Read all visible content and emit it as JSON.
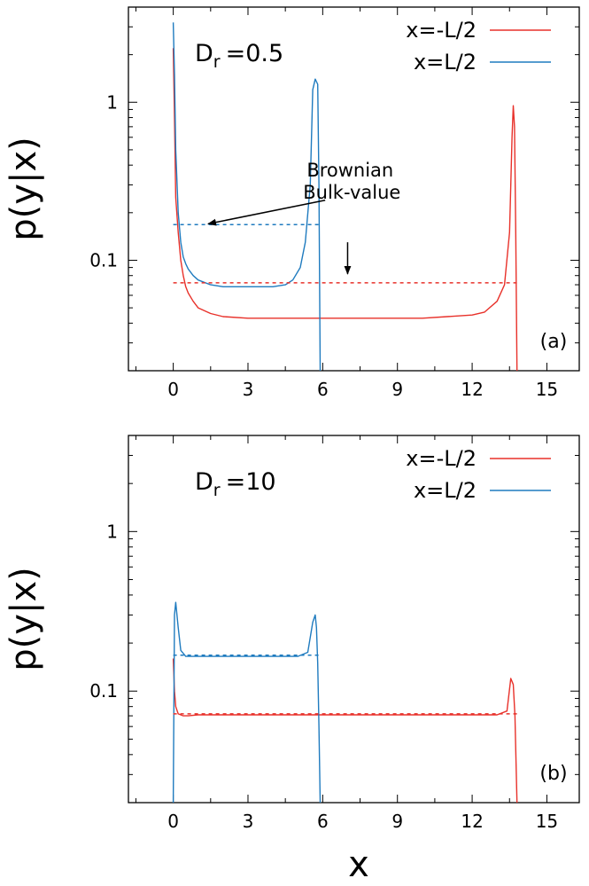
{
  "xlabel": "x",
  "chart_data": [
    {
      "type": "line",
      "panel_tag": "(a)",
      "ylabel": "p(y|x)",
      "param_main": "D",
      "param_sub": "r",
      "param_value": "=0.5",
      "xlim": [
        -1.8,
        16.3
      ],
      "ylim": [
        0.02,
        4.0
      ],
      "yscale": "log",
      "x_ticks": [
        0,
        3,
        6,
        9,
        12,
        15
      ],
      "x_tick_labels": [
        "0",
        "3",
        "6",
        "9",
        "12",
        "15"
      ],
      "y_ticks": [
        0.1,
        1
      ],
      "y_tick_labels": [
        "0.1",
        "1"
      ],
      "legend_position": "top-right",
      "colors": {
        "red": "#e8312a",
        "blue": "#1f7bbf"
      },
      "series": [
        {
          "name": "x=-L/2",
          "color": "#e8312a",
          "x": [
            0,
            0.05,
            0.1,
            0.2,
            0.3,
            0.4,
            0.5,
            0.6,
            0.8,
            1.0,
            1.5,
            2,
            3,
            4,
            5,
            6,
            7,
            8,
            9,
            10,
            11,
            12,
            12.5,
            13.0,
            13.3,
            13.5,
            13.6,
            13.65,
            13.7,
            13.75,
            13.8
          ],
          "y": [
            2.2,
            0.8,
            0.25,
            0.15,
            0.1,
            0.08,
            0.068,
            0.062,
            0.055,
            0.05,
            0.046,
            0.044,
            0.043,
            0.043,
            0.043,
            0.043,
            0.043,
            0.043,
            0.043,
            0.043,
            0.044,
            0.045,
            0.047,
            0.055,
            0.07,
            0.15,
            0.6,
            0.95,
            0.7,
            0.15,
            0.02
          ]
        },
        {
          "name": "x=L/2",
          "color": "#1f7bbf",
          "x": [
            0,
            0.05,
            0.1,
            0.2,
            0.3,
            0.4,
            0.5,
            0.6,
            0.8,
            1.0,
            1.5,
            2,
            3,
            4,
            4.5,
            4.8,
            5.1,
            5.3,
            5.5,
            5.6,
            5.7,
            5.8,
            5.85,
            5.9
          ],
          "y": [
            3.2,
            1.5,
            0.5,
            0.2,
            0.13,
            0.105,
            0.095,
            0.088,
            0.08,
            0.075,
            0.07,
            0.068,
            0.068,
            0.068,
            0.07,
            0.075,
            0.09,
            0.13,
            0.3,
            1.2,
            1.4,
            1.3,
            0.3,
            0.02
          ]
        },
        {
          "name": "",
          "color": "#e8312a",
          "dashed": true,
          "x": [
            0,
            13.8
          ],
          "y": [
            0.072,
            0.072
          ]
        },
        {
          "name": "",
          "color": "#1f7bbf",
          "dashed": true,
          "x": [
            0,
            5.9
          ],
          "y": [
            0.168,
            0.168
          ]
        }
      ],
      "annotations": {
        "line1": "Brownian",
        "line2": "Bulk-value",
        "arrows": [
          {
            "from": [
              6.1,
              0.24
            ],
            "to": [
              1.4,
              0.17
            ]
          },
          {
            "from": [
              7.0,
              0.13
            ],
            "to": [
              7.0,
              0.082
            ]
          }
        ]
      }
    },
    {
      "type": "line",
      "panel_tag": "(b)",
      "ylabel": "p(y|x)",
      "param_main": "D",
      "param_sub": "r",
      "param_value": "=10",
      "xlim": [
        -1.8,
        16.3
      ],
      "ylim": [
        0.02,
        4.0
      ],
      "yscale": "log",
      "x_ticks": [
        0,
        3,
        6,
        9,
        12,
        15
      ],
      "x_tick_labels": [
        "0",
        "3",
        "6",
        "9",
        "12",
        "15"
      ],
      "y_ticks": [
        0.1,
        1
      ],
      "y_tick_labels": [
        "0.1",
        "1"
      ],
      "legend_position": "top-right",
      "series": [
        {
          "name": "x=-L/2",
          "color": "#e8312a",
          "x": [
            0,
            0.05,
            0.1,
            0.2,
            0.4,
            0.6,
            1,
            2,
            3,
            4,
            5,
            6,
            7,
            8,
            9,
            10,
            11,
            12,
            13,
            13.4,
            13.55,
            13.65,
            13.72,
            13.8
          ],
          "y": [
            0.16,
            0.1,
            0.08,
            0.072,
            0.07,
            0.07,
            0.071,
            0.071,
            0.071,
            0.071,
            0.071,
            0.071,
            0.071,
            0.071,
            0.071,
            0.071,
            0.071,
            0.071,
            0.071,
            0.075,
            0.12,
            0.11,
            0.07,
            0.02
          ]
        },
        {
          "name": "x=L/2",
          "color": "#1f7bbf",
          "x": [
            0,
            0.05,
            0.1,
            0.2,
            0.3,
            0.5,
            1,
            2,
            3,
            4,
            5,
            5.4,
            5.6,
            5.7,
            5.75,
            5.8,
            5.85,
            5.9
          ],
          "y": [
            0.02,
            0.3,
            0.36,
            0.25,
            0.18,
            0.165,
            0.165,
            0.165,
            0.165,
            0.165,
            0.165,
            0.175,
            0.27,
            0.3,
            0.25,
            0.15,
            0.06,
            0.02
          ]
        },
        {
          "name": "",
          "color": "#e8312a",
          "dashed": true,
          "x": [
            0,
            13.8
          ],
          "y": [
            0.072,
            0.072
          ]
        },
        {
          "name": "",
          "color": "#1f7bbf",
          "dashed": true,
          "x": [
            0,
            5.9
          ],
          "y": [
            0.168,
            0.168
          ]
        }
      ]
    }
  ]
}
